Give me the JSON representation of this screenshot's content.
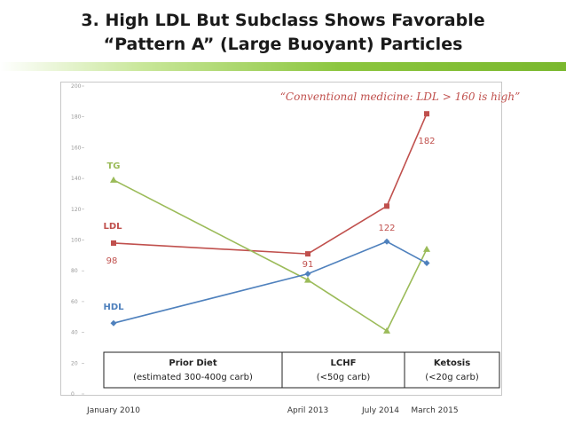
{
  "slide": {
    "title_line1": "3. High LDL But Subclass Shows Favorable",
    "title_line2": "“Pattern A” (Large Buoyant) Particles"
  },
  "chart_data": {
    "type": "line",
    "x_labels": [
      "January 2010",
      "April 2013",
      "July 2014",
      "March 2015"
    ],
    "y_ticks": [
      "0",
      "20",
      "40",
      "60",
      "80",
      "100",
      "120",
      "140",
      "160",
      "180",
      "200"
    ],
    "ylim": [
      0,
      200
    ],
    "grid": false,
    "annotation": "“Conventional medicine: LDL > 160 is high”",
    "series": [
      {
        "name": "LDL",
        "color": "#c0504d",
        "marker": "square",
        "values": [
          98,
          91,
          122,
          182
        ],
        "data_labels": [
          "98",
          "91",
          "122",
          "182"
        ]
      },
      {
        "name": "TG",
        "color": "#9bbb59",
        "marker": "triangle",
        "values": [
          139,
          74,
          41,
          94
        ],
        "data_labels": []
      },
      {
        "name": "HDL",
        "color": "#4f81bd",
        "marker": "diamond",
        "values": [
          46,
          78,
          99,
          85
        ],
        "data_labels": []
      }
    ],
    "phases": [
      {
        "label": "Prior Diet",
        "detail": "(estimated 300-400g carb)"
      },
      {
        "label": "LCHF",
        "detail": "(<50g carb)"
      },
      {
        "label": "Ketosis",
        "detail": "(<20g carb)"
      }
    ]
  }
}
